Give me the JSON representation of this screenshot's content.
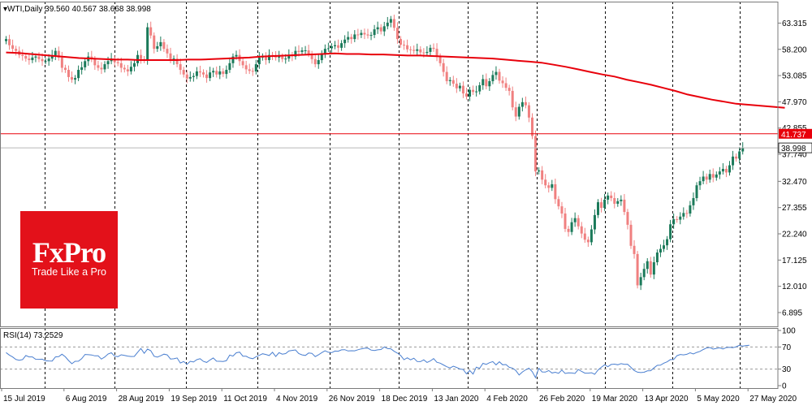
{
  "chart_data": {
    "type": "candlestick",
    "symbol": "WTI,Daily",
    "ohlc_header": "39.560 40.567 38.668 38.998",
    "last_price": 38.998,
    "last_price_label": "38.998",
    "hline_value": 41.737,
    "hline_label": "41.737",
    "price_ylim": [
      4.2,
      67.5
    ],
    "price_ticks": [
      "63.315",
      "58.200",
      "53.085",
      "47.970",
      "42.855",
      "37.740",
      "32.470",
      "27.355",
      "22.240",
      "17.125",
      "12.010",
      "6.895"
    ],
    "x_labels": [
      "15 Jul 2019",
      "6 Aug 2019",
      "28 Aug 2019",
      "19 Sep 2019",
      "11 Oct 2019",
      "4 Nov 2019",
      "26 Nov 2019",
      "18 Dec 2019",
      "13 Jan 2020",
      "4 Feb 2020",
      "26 Feb 2020",
      "19 Mar 2020",
      "13 Apr 2020",
      "5 May 2020",
      "27 May 2020"
    ],
    "x_label_bars": [
      0,
      16,
      32,
      48,
      64,
      80,
      96,
      112,
      128,
      144,
      160,
      176,
      192,
      208,
      224
    ],
    "close": [
      60.2,
      59.0,
      58.3,
      57.9,
      57.1,
      56.9,
      56.4,
      56.1,
      56.6,
      56.8,
      56.3,
      55.9,
      55.9,
      56.4,
      57.0,
      57.9,
      56.6,
      54.6,
      54.2,
      52.8,
      52.3,
      52.6,
      54.2,
      54.7,
      55.9,
      56.8,
      56.3,
      55.1,
      54.6,
      54.3,
      55.3,
      55.9,
      56.4,
      55.7,
      55.5,
      54.6,
      54.3,
      53.9,
      54.8,
      55.5,
      57.1,
      56.3,
      56.1,
      62.5,
      60.9,
      58.3,
      58.8,
      59.6,
      58.3,
      57.4,
      56.1,
      56.4,
      55.3,
      54.2,
      53.3,
      52.5,
      52.8,
      53.0,
      53.9,
      53.7,
      53.3,
      52.6,
      53.7,
      54.0,
      53.3,
      53.9,
      53.4,
      54.2,
      55.5,
      56.8,
      57.1,
      55.9,
      55.1,
      54.3,
      54.0,
      53.9,
      55.3,
      56.6,
      56.8,
      56.1,
      57.1,
      57.0,
      56.6,
      56.8,
      56.3,
      56.4,
      57.1,
      56.8,
      57.9,
      57.7,
      58.0,
      58.0,
      57.3,
      56.3,
      55.3,
      56.1,
      57.4,
      58.3,
      58.4,
      58.8,
      59.0,
      58.5,
      59.4,
      60.1,
      60.6,
      60.2,
      61.1,
      61.0,
      61.4,
      61.1,
      60.9,
      61.0,
      62.1,
      62.5,
      61.7,
      62.7,
      63.4,
      64.1,
      62.4,
      60.2,
      59.1,
      59.0,
      58.2,
      58.1,
      57.9,
      58.2,
      57.6,
      57.5,
      57.7,
      58.5,
      58.3,
      56.8,
      55.5,
      53.8,
      52.0,
      52.2,
      51.5,
      50.6,
      51.1,
      49.6,
      49.0,
      50.3,
      49.9,
      50.0,
      51.2,
      52.4,
      51.0,
      52.0,
      53.2,
      53.8,
      52.1,
      51.6,
      50.7,
      50.1,
      46.9,
      45.1,
      47.0,
      47.9,
      47.3,
      44.9,
      41.3,
      34.4,
      34.6,
      32.8,
      31.7,
      31.2,
      31.9,
      29.0,
      27.6,
      26.2,
      23.2,
      22.6,
      24.5,
      25.3,
      23.7,
      22.3,
      21.1,
      20.6,
      23.1,
      25.9,
      28.4,
      27.3,
      28.9,
      29.7,
      29.2,
      28.1,
      28.6,
      28.9,
      26.5,
      24.0,
      19.9,
      18.3,
      12.2,
      13.8,
      15.4,
      16.9,
      14.3,
      16.7,
      18.6,
      19.3,
      20.0,
      21.2,
      24.1,
      25.1,
      25.0,
      25.6,
      26.3,
      26.2,
      27.8,
      29.2,
      31.7,
      32.5,
      33.4,
      32.8,
      33.9,
      33.2,
      33.8,
      34.4,
      34.9,
      34.2,
      35.6,
      37.3,
      36.9,
      38.3,
      39.0
    ],
    "ma_values": [
      57.6,
      57.5,
      57.3,
      57.1,
      56.9,
      56.7,
      56.5,
      56.4,
      56.3,
      56.2,
      56.2,
      56.1,
      56.1,
      56.1,
      56.1,
      56.2,
      56.2,
      56.3,
      56.4,
      56.5,
      56.6,
      56.8,
      56.9,
      57.0,
      57.1,
      57.2,
      57.3,
      57.4,
      57.3,
      57.3,
      57.2,
      57.2,
      57.1,
      57.0,
      57.0,
      56.9,
      56.8,
      56.7,
      56.6,
      56.5,
      56.4,
      56.2,
      56.0,
      55.8,
      55.6,
      55.2,
      54.8,
      54.3,
      53.8,
      53.3,
      52.9,
      52.3,
      51.8,
      51.3,
      50.7,
      50.1,
      49.4,
      48.9,
      48.4,
      48.0,
      47.6,
      47.4,
      47.2,
      47.0,
      46.8
    ],
    "ma_start_bar": 0,
    "ma_step": 3.7,
    "rsi_label": "RSI(14) 73.2529",
    "rsi_ticks": [
      "100",
      "70",
      "30",
      "0"
    ],
    "rsi_levels": [
      70,
      30
    ],
    "rsi_ylim": [
      0,
      100
    ],
    "rsi_values": [
      59.9,
      55.3,
      51.9,
      47.4,
      46.1,
      47.2,
      54.6,
      52.0,
      52.0,
      47.8,
      47.6,
      47.9,
      45.0,
      44.7,
      44.5,
      52.1,
      52.5,
      56.9,
      52.4,
      45.5,
      39.7,
      44.1,
      44.3,
      48.8,
      56.4,
      56.1,
      55.6,
      54.0,
      54.0,
      48.1,
      51.9,
      57.3,
      59.6,
      53.4,
      52.5,
      55.9,
      54.9,
      53.6,
      52.8,
      52.9,
      60.4,
      67.4,
      58.6,
      66.3,
      63.2,
      53.3,
      51.8,
      54.1,
      57.0,
      55.8,
      48.2,
      48.7,
      50.2,
      41.1,
      43.7,
      38.7,
      44.1,
      42.8,
      47.0,
      48.8,
      44.0,
      42.1,
      46.4,
      50.1,
      44.2,
      44.1,
      43.8,
      45.1,
      55.3,
      53.6,
      59.6,
      60.8,
      53.4,
      53.2,
      50.2,
      48.8,
      52.3,
      54.8,
      57.8,
      56.4,
      54.5,
      60.5,
      52.8,
      59.7,
      57.0,
      58.1,
      63.0,
      63.8,
      64.7,
      58.2,
      55.8,
      54.7,
      59.1,
      58.6,
      52.6,
      55.9,
      59.9,
      63.1,
      60.4,
      59.7,
      62.6,
      62.3,
      64.9,
      65.1,
      62.8,
      63.3,
      63.1,
      65.0,
      66.6,
      67.8,
      67.9,
      64.4,
      63.6,
      64.9,
      65.5,
      70.1,
      67.0,
      66.8,
      62.2,
      59.0,
      54.5,
      47.0,
      50.5,
      46.7,
      49.7,
      43.7,
      43.6,
      46.7,
      42.0,
      44.7,
      49.0,
      42.4,
      40.8,
      37.5,
      34.2,
      32.0,
      35.3,
      32.9,
      30.1,
      29.2,
      21.3,
      27.5,
      21.1,
      33.5,
      31.5,
      40.5,
      38.6,
      41.6,
      43.6,
      37.6,
      43.3,
      37.8,
      38.3,
      33.3,
      31.8,
      27.4,
      19.2,
      24.8,
      28.7,
      31.6,
      25.3,
      14.6,
      31.4,
      24.8,
      24.6,
      27.3,
      23.0,
      24.2,
      22.3,
      28.2,
      22.1,
      23.2,
      22.9,
      22.0,
      29.2,
      25.7,
      22.6,
      22.6,
      23.4,
      20.6,
      28.4,
      33.2,
      37.8,
      34.2,
      38.4,
      38.9,
      37.8,
      39.8,
      38.5,
      38.8,
      33.1,
      27.5,
      24.4,
      23.7,
      24.2,
      26.8,
      27.1,
      32.0,
      36.7,
      37.0,
      40.7,
      43.1,
      47.2,
      47.2,
      54.3,
      56.5,
      55.7,
      56.8,
      59.6,
      57.4,
      60.2,
      62.1,
      65.4,
      68.2,
      69.1,
      66.2,
      67.5,
      68.5,
      66.5,
      68.9,
      69.6,
      68.7,
      70.4,
      73.1,
      71.5,
      72.7,
      73.3
    ],
    "colors": {
      "up": "#1b7a5a",
      "down": "#f08080",
      "ma": "#e8000b",
      "hline": "#e8000b",
      "rsi": "#4a7fd0",
      "grid": "#000000",
      "frame": "#7a7a7a"
    }
  },
  "logo": {
    "brand": "FxPro",
    "tagline": "Trade Like a Pro"
  }
}
